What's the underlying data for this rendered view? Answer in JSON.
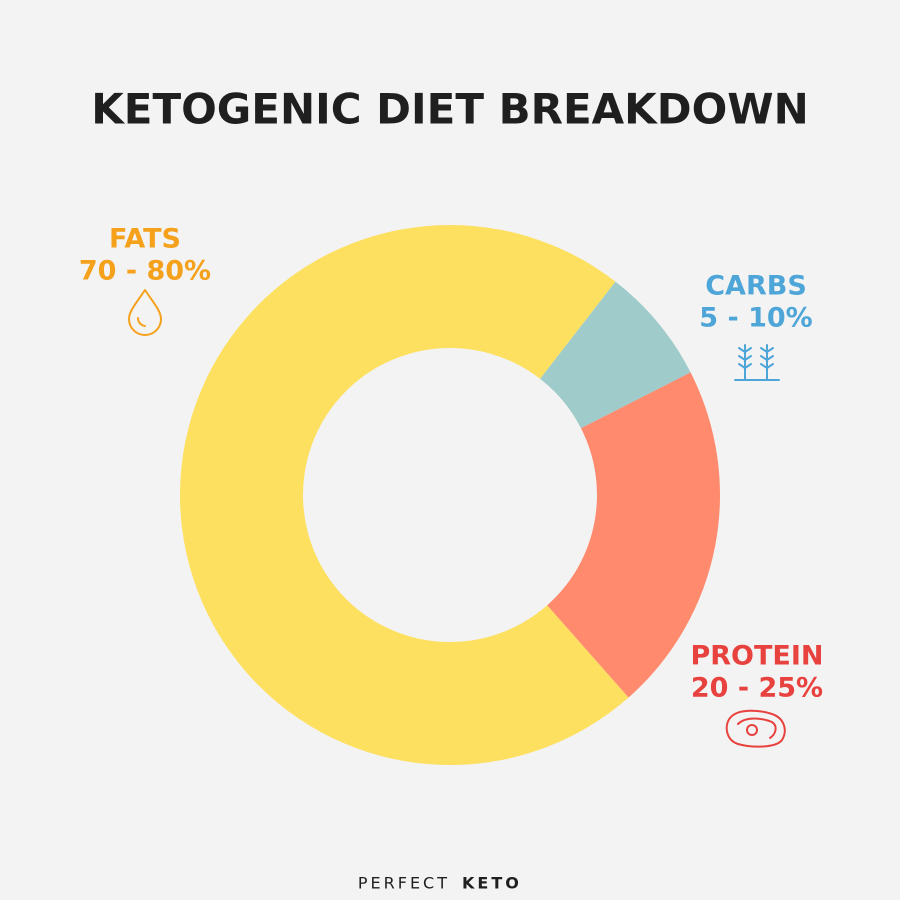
{
  "chart_data": {
    "type": "pie",
    "title": "KETOGENIC DIET BREAKDOWN",
    "categories": [
      "FATS",
      "CARBS",
      "PROTEIN"
    ],
    "values": [
      72,
      7,
      21
    ],
    "value_labels": [
      "70 - 80%",
      "5 - 10%",
      "20 - 25%"
    ],
    "colors": [
      "#fde05f",
      "#9fcbcb",
      "#ff8a6e"
    ],
    "label_colors": [
      "#f5a11c",
      "#4ea5d8",
      "#e8423f"
    ],
    "donut": true
  },
  "footer": {
    "brand_light": "PERFECT",
    "brand_bold": "KETO"
  }
}
